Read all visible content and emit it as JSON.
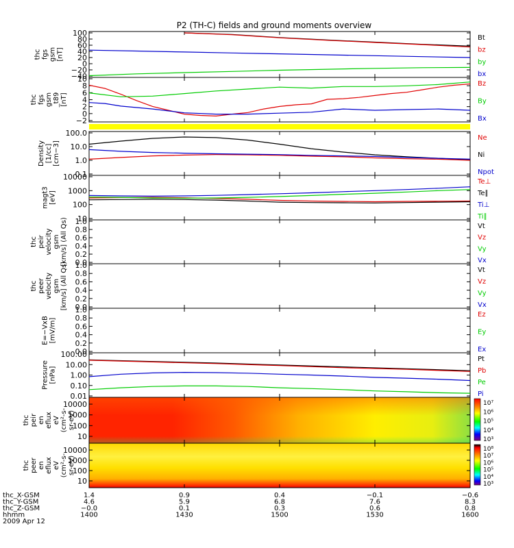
{
  "title": "P2 (TH-C) fields and ground moments overview",
  "colors": {
    "black": "#000000",
    "red": "#e00000",
    "green": "#00cc00",
    "blue": "#0000cc",
    "yellow": "#ffff00"
  },
  "chart_data": [
    {
      "type": "line",
      "ylabel": [
        "thc",
        "fgs",
        "gsm",
        "[nT]"
      ],
      "yticks": [
        "100",
        "80",
        "60",
        "40",
        "20",
        "0",
        "−20",
        "−40"
      ],
      "ylim": [
        -40,
        100
      ],
      "legend": [
        "Bt",
        "bz",
        "by",
        "bx"
      ],
      "series": [
        {
          "name": "Bt",
          "color": "#000000",
          "x": [
            1430,
            1445,
            1500,
            1515,
            1530,
            1545,
            1600
          ],
          "y": [
            100,
            95,
            85,
            77,
            70,
            63,
            57
          ]
        },
        {
          "name": "bz",
          "color": "#e00000",
          "x": [
            1430,
            1445,
            1500,
            1515,
            1530,
            1545,
            1600
          ],
          "y": [
            100,
            94,
            84,
            76,
            69,
            62,
            54
          ]
        },
        {
          "name": "by",
          "color": "#00cc00",
          "x": [
            1400,
            1415,
            1430,
            1445,
            1500,
            1515,
            1530,
            1545,
            1600
          ],
          "y": [
            -39,
            -33,
            -29,
            -25,
            -21,
            -18,
            -15,
            -13,
            -12
          ]
        },
        {
          "name": "bx",
          "color": "#0000cc",
          "x": [
            1400,
            1415,
            1430,
            1445,
            1500,
            1515,
            1530,
            1545,
            1600
          ],
          "y": [
            44,
            41,
            38,
            35,
            32,
            29,
            26,
            23,
            20
          ]
        }
      ]
    },
    {
      "type": "line",
      "ylabel": [
        "thc",
        "fgs",
        "gsm",
        "_t89",
        "[nT]"
      ],
      "yticks": [
        "10",
        "8",
        "6",
        "4",
        "2",
        "0",
        "−2"
      ],
      "ylim": [
        -3,
        10
      ],
      "legend": [
        "Bz",
        "By",
        "Bx"
      ],
      "series": [
        {
          "name": "Bz",
          "color": "#e00000",
          "x": [
            1400,
            1405,
            1410,
            1415,
            1420,
            1425,
            1430,
            1435,
            1440,
            1445,
            1450,
            1455,
            1500,
            1505,
            1510,
            1515,
            1520,
            1525,
            1530,
            1535,
            1540,
            1545,
            1550,
            1555,
            1600
          ],
          "y": [
            8,
            7,
            5.2,
            3.2,
            1.4,
            0.2,
            -1,
            -1.4,
            -1.6,
            -1,
            -0.5,
            0.6,
            1.4,
            1.9,
            2.2,
            3.6,
            3.8,
            4.2,
            4.8,
            5.4,
            5.8,
            6.6,
            7.4,
            8,
            8.4
          ]
        },
        {
          "name": "By",
          "color": "#00cc00",
          "x": [
            1400,
            1410,
            1420,
            1430,
            1440,
            1450,
            1500,
            1510,
            1520,
            1530,
            1540,
            1550,
            1600
          ],
          "y": [
            5.6,
            4.4,
            4.6,
            5.4,
            6.2,
            6.8,
            7.4,
            7.1,
            7.6,
            7.6,
            7.8,
            8.2,
            9
          ]
        },
        {
          "name": "Bx",
          "color": "#0000cc",
          "x": [
            1400,
            1405,
            1410,
            1420,
            1430,
            1440,
            1450,
            1500,
            1510,
            1520,
            1530,
            1540,
            1550,
            1600
          ],
          "y": [
            2.6,
            2.3,
            1.5,
            0.6,
            -0.6,
            -1,
            -1,
            -0.7,
            -0.4,
            0.6,
            0.2,
            0.4,
            0.6,
            0.2
          ]
        }
      ]
    },
    {
      "type": "line",
      "ylabel": [
        "Density",
        "[1/cc]",
        "[cm−3]"
      ],
      "yticks": [
        "100.0",
        "10.0",
        "1.0",
        "0.1"
      ],
      "ylim": [
        0.1,
        100
      ],
      "log": true,
      "legend": [
        "Ne",
        "Ni",
        "Npot"
      ],
      "series": [
        {
          "name": "Ni",
          "color": "#000000",
          "x": [
            1400,
            1410,
            1420,
            1430,
            1440,
            1450,
            1500,
            1510,
            1520,
            1530,
            1540,
            1550,
            1600
          ],
          "y": [
            15,
            25,
            40,
            50,
            45,
            30,
            15,
            7,
            4,
            2.5,
            1.8,
            1.4,
            1.1
          ]
        },
        {
          "name": "Ne",
          "color": "#e00000",
          "x": [
            1400,
            1410,
            1420,
            1430,
            1440,
            1450,
            1500,
            1510,
            1520,
            1530,
            1540,
            1550,
            1600
          ],
          "y": [
            1.2,
            1.6,
            2.1,
            2.4,
            2.6,
            2.5,
            2.3,
            2.0,
            1.8,
            1.5,
            1.3,
            1.2,
            1.0
          ]
        },
        {
          "name": "Npot",
          "color": "#0000cc",
          "x": [
            1400,
            1410,
            1420,
            1430,
            1440,
            1450,
            1500,
            1510,
            1520,
            1530,
            1540,
            1550,
            1600
          ],
          "y": [
            6,
            4.5,
            3.7,
            3.3,
            3.0,
            2.8,
            2.6,
            2.3,
            2.1,
            1.9,
            1.6,
            1.4,
            1.2
          ]
        }
      ]
    },
    {
      "type": "line",
      "ylabel": [
        "magt3",
        "[eV]"
      ],
      "yticks": [
        "10000",
        "1000",
        "100",
        "10"
      ],
      "ylim": [
        10,
        10000
      ],
      "log": true,
      "legend": [
        "Te⊥",
        "Te∥",
        "Ti⊥",
        "Ti∥"
      ],
      "series": [
        {
          "name": "Te⊥",
          "color": "#e00000",
          "x": [
            1400,
            1410,
            1420,
            1430,
            1440,
            1450,
            1500,
            1510,
            1520,
            1530,
            1540,
            1550,
            1600
          ],
          "y": [
            300,
            320,
            330,
            310,
            280,
            240,
            200,
            180,
            170,
            160,
            170,
            175,
            180
          ]
        },
        {
          "name": "Te∥",
          "color": "#000000",
          "x": [
            1400,
            1410,
            1420,
            1430,
            1440,
            1450,
            1500,
            1510,
            1520,
            1530,
            1540,
            1550,
            1600
          ],
          "y": [
            220,
            230,
            240,
            230,
            210,
            180,
            150,
            140,
            135,
            130,
            140,
            150,
            160
          ]
        },
        {
          "name": "Ti⊥",
          "color": "#0000cc",
          "x": [
            1400,
            1410,
            1420,
            1430,
            1440,
            1450,
            1500,
            1510,
            1520,
            1530,
            1540,
            1550,
            1600
          ],
          "y": [
            450,
            420,
            400,
            420,
            460,
            520,
            600,
            700,
            850,
            1000,
            1200,
            1500,
            1900
          ]
        },
        {
          "name": "Ti∥",
          "color": "#00cc00",
          "x": [
            1400,
            1410,
            1420,
            1430,
            1440,
            1450,
            1500,
            1510,
            1520,
            1530,
            1540,
            1550,
            1600
          ],
          "y": [
            350,
            330,
            300,
            290,
            300,
            330,
            380,
            450,
            550,
            650,
            800,
            1000,
            1200
          ]
        }
      ]
    },
    {
      "type": "line",
      "ylabel": [
        "thc",
        "peir",
        "velocity",
        "gsm",
        "[km/s] (All Qs)"
      ],
      "yticks": [
        "1.0",
        "0.8",
        "0.6",
        "0.4",
        "0.2",
        "0.0"
      ],
      "ylim": [
        0,
        1
      ],
      "legend": [
        "Vt",
        "Vz",
        "Vy",
        "Vx"
      ],
      "series": []
    },
    {
      "type": "line",
      "ylabel": [
        "thc",
        "peer",
        "velocity",
        "gsm",
        "[km/s] (All Qs)"
      ],
      "yticks": [
        "1.0",
        "0.8",
        "0.6",
        "0.4",
        "0.2",
        "0.0"
      ],
      "ylim": [
        0,
        1
      ],
      "legend": [
        "Vt",
        "Vz",
        "Vy",
        "Vx"
      ],
      "series": []
    },
    {
      "type": "line",
      "ylabel": [
        "E=−VxB",
        "[mV/m]"
      ],
      "yticks": [
        "1.0",
        "0.8",
        "0.6",
        "0.4",
        "0.2",
        "0.0"
      ],
      "ylim": [
        0,
        1
      ],
      "legend": [
        "Ez",
        "Ey",
        "Ex"
      ],
      "series": []
    },
    {
      "type": "line",
      "ylabel": [
        "Pressure",
        "[nPa]"
      ],
      "yticks": [
        "100.00",
        "10.00",
        "1.00",
        "0.10",
        "0.01"
      ],
      "ylim": [
        0.01,
        100
      ],
      "log": true,
      "legend": [
        "Pt",
        "Pb",
        "Pe",
        "Pi"
      ],
      "series": [
        {
          "name": "Pt",
          "color": "#000000",
          "x": [
            1400,
            1420,
            1440,
            1500,
            1520,
            1540,
            1600
          ],
          "y": [
            28,
            20,
            14,
            9,
            6,
            4,
            2.6
          ]
        },
        {
          "name": "Pb",
          "color": "#e00000",
          "x": [
            1400,
            1420,
            1440,
            1500,
            1520,
            1540,
            1600
          ],
          "y": [
            26,
            18,
            12.5,
            8,
            5,
            3.5,
            2.2
          ]
        },
        {
          "name": "Pe",
          "color": "#00cc00",
          "x": [
            1400,
            1410,
            1420,
            1430,
            1440,
            1450,
            1500,
            1510,
            1520,
            1530,
            1540,
            1550,
            1600
          ],
          "y": [
            0.04,
            0.06,
            0.08,
            0.09,
            0.09,
            0.08,
            0.06,
            0.05,
            0.04,
            0.03,
            0.025,
            0.02,
            0.018
          ]
        },
        {
          "name": "Pi",
          "color": "#0000cc",
          "x": [
            1400,
            1410,
            1420,
            1430,
            1440,
            1450,
            1500,
            1510,
            1520,
            1530,
            1540,
            1550,
            1600
          ],
          "y": [
            0.7,
            1.2,
            1.6,
            1.8,
            1.7,
            1.5,
            1.2,
            1.0,
            0.8,
            0.6,
            0.5,
            0.4,
            0.3
          ]
        }
      ]
    },
    {
      "type": "heatmap",
      "ylabel": [
        "thc",
        "peir",
        "en",
        "eflux",
        "eV",
        "(cm²-s-",
        "sr-eV)"
      ],
      "yticks": [
        "10000",
        "1000",
        "100",
        "10"
      ],
      "colorbar": [
        "10⁷",
        "10⁶",
        "10⁵",
        "10⁴",
        "10³"
      ]
    },
    {
      "type": "heatmap",
      "ylabel": [
        "thc",
        "peer",
        "en",
        "eflux",
        "eV",
        "(cm²-s-",
        "sr-eV)"
      ],
      "yticks": [
        "10000",
        "1000",
        "100",
        "10"
      ],
      "colorbar": [
        "10⁸",
        "10⁷",
        "10⁶",
        "10⁵",
        "10⁴",
        "10³"
      ]
    }
  ],
  "xaxis": {
    "rows": [
      {
        "label": "thc_X-GSM",
        "values": [
          "1.4",
          "0.9",
          "0.4",
          "−0.1",
          "−0.6"
        ]
      },
      {
        "label": "thc_Y-GSM",
        "values": [
          "4.6",
          "5.9",
          "6.8",
          "7.6",
          "8.3"
        ]
      },
      {
        "label": "thc_Z-GSM",
        "values": [
          "−0.0",
          "0.1",
          "0.3",
          "0.6",
          "0.8"
        ]
      },
      {
        "label": "hhmm",
        "values": [
          "1400",
          "1430",
          "1500",
          "1530",
          "1600"
        ]
      }
    ],
    "date": "2009 Apr 12",
    "times": [
      1400,
      1430,
      1500,
      1530,
      1600
    ]
  }
}
